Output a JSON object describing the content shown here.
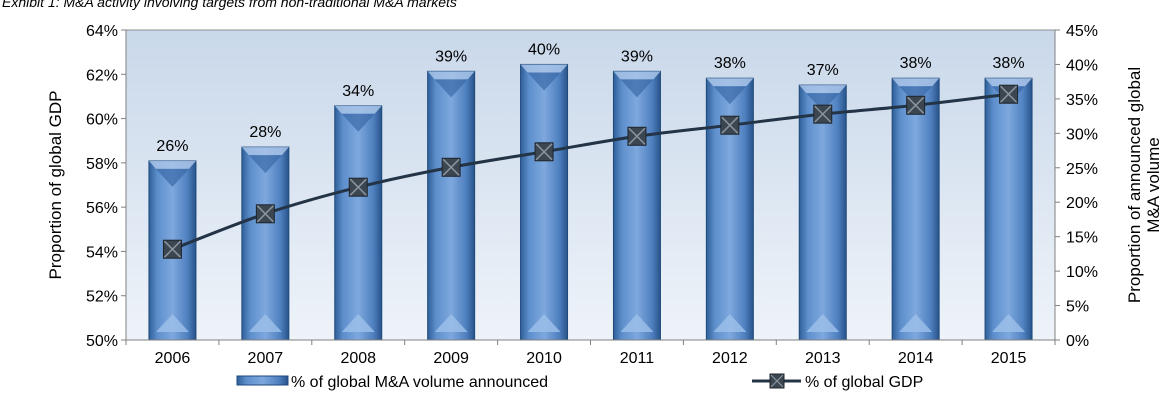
{
  "caption": "Exhibit 1: M&A activity involving targets from non-traditional M&A markets",
  "chart_data": {
    "type": "bar",
    "categories": [
      "2006",
      "2007",
      "2008",
      "2009",
      "2010",
      "2011",
      "2012",
      "2013",
      "2014",
      "2015"
    ],
    "series": [
      {
        "name": "% of global M&A volume announced",
        "type": "bar",
        "axis": "right",
        "values": [
          26,
          28,
          34,
          39,
          40,
          39,
          38,
          37,
          38,
          38
        ],
        "labels": [
          "26%",
          "28%",
          "34%",
          "39%",
          "40%",
          "39%",
          "38%",
          "37%",
          "38%",
          "38%"
        ]
      },
      {
        "name": "% of global GDP",
        "type": "line",
        "axis": "left",
        "values": [
          54.1,
          55.7,
          56.9,
          57.8,
          58.5,
          59.2,
          59.7,
          60.2,
          60.6,
          61.1
        ]
      }
    ],
    "y_left": {
      "label": "Proportion of global GDP",
      "ylim": [
        50,
        64
      ],
      "ticks": [
        "50%",
        "52%",
        "54%",
        "56%",
        "58%",
        "60%",
        "62%",
        "64%"
      ]
    },
    "y_right": {
      "label_lines": [
        "Proportion of announced global",
        "M&A volume"
      ],
      "ylim": [
        0,
        45
      ],
      "ticks": [
        "0%",
        "5%",
        "10%",
        "15%",
        "20%",
        "25%",
        "30%",
        "35%",
        "40%",
        "45%"
      ]
    },
    "legend_position": "bottom",
    "colors": {
      "bar": "#4f81bd",
      "bar_dark": "#2b5a94",
      "line": "#243447",
      "plot_bg": "#dbe5f1"
    }
  }
}
